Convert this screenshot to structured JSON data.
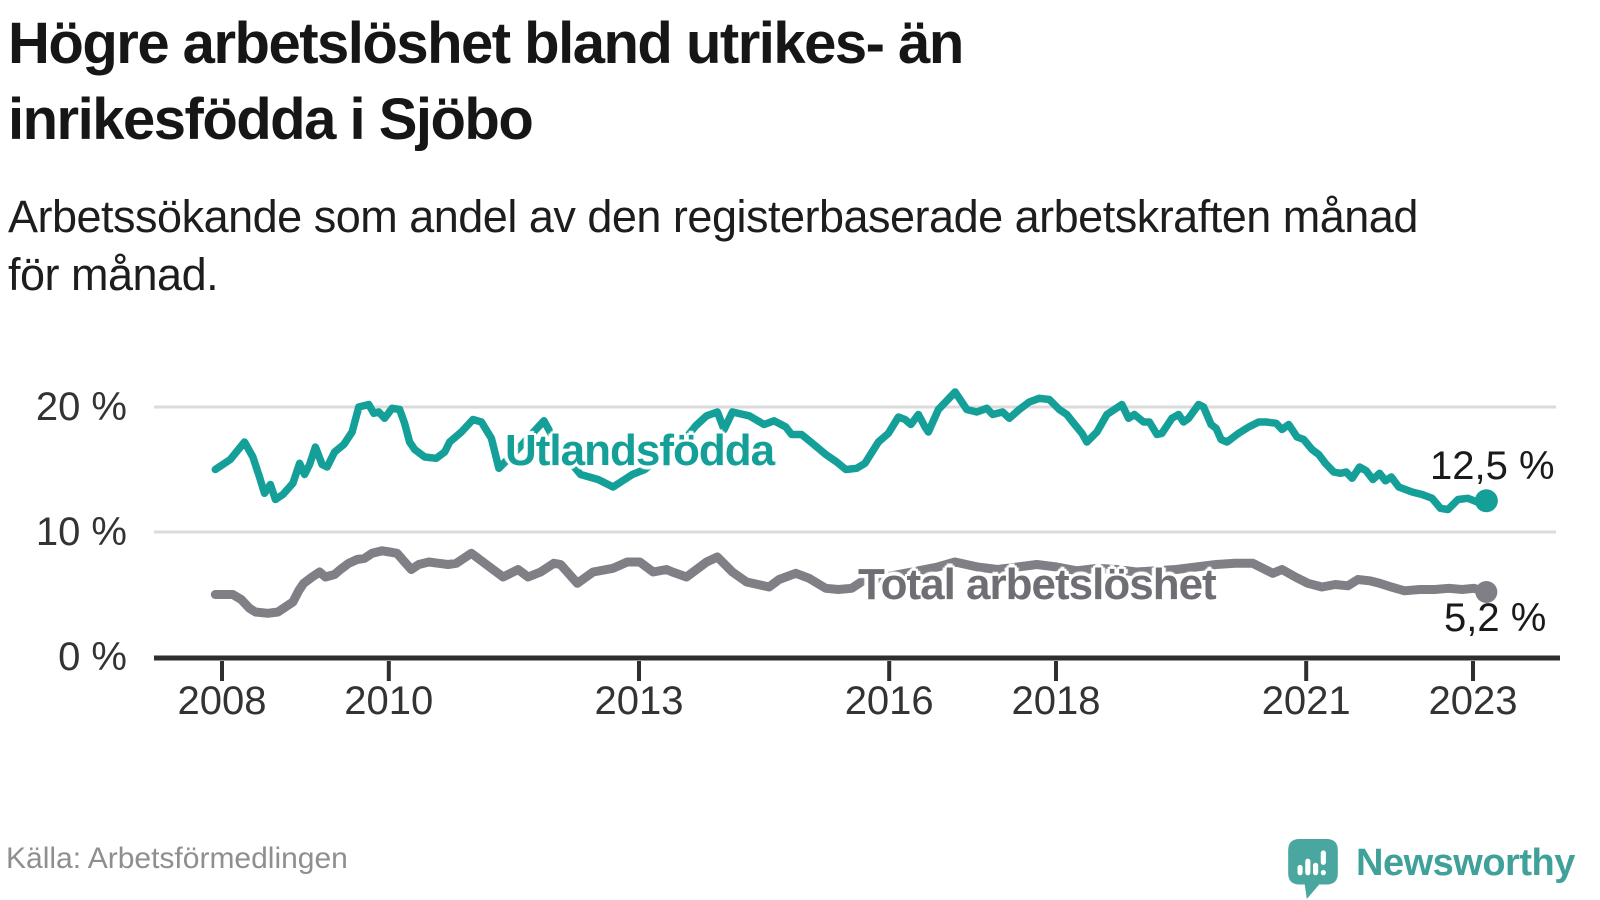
{
  "header": {
    "title": "Högre arbetslöshet bland utrikes- än inrikesfödda i Sjöbo",
    "title_lines": [
      "Högre arbetslöshet bland utrikes- än",
      "inrikesfödda i Sjöbo"
    ],
    "subtitle": "Arbetssökande som andel av den registerbaserade arbetskraften månad för månad.",
    "subtitle_lines": [
      "Arbetssökande som andel av den registerbaserade arbetskraften månad",
      "för månad."
    ]
  },
  "footer": {
    "source": "Källa: Arbetsförmedlingen",
    "brand": "Newsworthy"
  },
  "colors": {
    "teal": "#14A098",
    "gray_line": "#807F85",
    "gray_label": "#6E6E74",
    "value_text": "#1A1A1A",
    "axis_text": "#333333",
    "axis_line": "#2E2E2E",
    "grid": "#DBDBDB",
    "source_text": "#8F8F8F",
    "logo_teal": "#49A79F",
    "wordmark_teal": "#3FA19A",
    "background": "#FFFFFF"
  },
  "chart_data": {
    "type": "line",
    "title": "Högre arbetslöshet bland utrikes- än inrikesfödda i Sjöbo",
    "subtitle": "Arbetssökande som andel av den registerbaserade arbetskraften månad för månad.",
    "source": "Källa: Arbetsförmedlingen",
    "unit": "%",
    "grid": "horizontal",
    "legend_position": "inline-labels",
    "xlim": [
      2007.9,
      2023.5
    ],
    "ylim": [
      0,
      22
    ],
    "yticks": [
      0,
      10,
      20
    ],
    "ytick_labels": [
      "0 %",
      "10 %",
      "20 %"
    ],
    "xticks": [
      2008,
      2010,
      2013,
      2016,
      2018,
      2021,
      2023
    ],
    "xtick_labels": [
      "2008",
      "2010",
      "2013",
      "2016",
      "2018",
      "2021",
      "2023"
    ],
    "series": [
      {
        "id": "utlandsfodda",
        "name": "Utlandsfödda",
        "color": "#14A098",
        "end_label": "12,5 %",
        "end_value": 12.5,
        "points": [
          [
            2007.92,
            15.0
          ],
          [
            2008.1,
            15.8
          ],
          [
            2008.27,
            17.2
          ],
          [
            2008.37,
            16.0
          ],
          [
            2008.45,
            14.4
          ],
          [
            2008.51,
            13.1
          ],
          [
            2008.58,
            13.8
          ],
          [
            2008.64,
            12.6
          ],
          [
            2008.73,
            13.0
          ],
          [
            2008.85,
            13.9
          ],
          [
            2008.93,
            15.5
          ],
          [
            2008.99,
            14.6
          ],
          [
            2009.05,
            15.4
          ],
          [
            2009.12,
            16.8
          ],
          [
            2009.2,
            15.4
          ],
          [
            2009.26,
            15.2
          ],
          [
            2009.35,
            16.4
          ],
          [
            2009.46,
            17.0
          ],
          [
            2009.56,
            18.0
          ],
          [
            2009.64,
            20.0
          ],
          [
            2009.76,
            20.2
          ],
          [
            2009.82,
            19.5
          ],
          [
            2009.88,
            19.6
          ],
          [
            2009.95,
            19.1
          ],
          [
            2010.04,
            19.9
          ],
          [
            2010.13,
            19.8
          ],
          [
            2010.19,
            18.7
          ],
          [
            2010.25,
            17.2
          ],
          [
            2010.31,
            16.6
          ],
          [
            2010.43,
            16.0
          ],
          [
            2010.57,
            15.9
          ],
          [
            2010.67,
            16.4
          ],
          [
            2010.73,
            17.2
          ],
          [
            2010.87,
            18.0
          ],
          [
            2011.01,
            19.0
          ],
          [
            2011.11,
            18.8
          ],
          [
            2011.23,
            17.5
          ],
          [
            2011.32,
            15.1
          ],
          [
            2011.6,
            17.0
          ],
          [
            2011.86,
            18.9
          ],
          [
            2012.06,
            16.5
          ],
          [
            2012.3,
            14.6
          ],
          [
            2012.51,
            14.2
          ],
          [
            2012.69,
            13.6
          ],
          [
            2012.92,
            14.6
          ],
          [
            2013.07,
            15.0
          ],
          [
            2013.22,
            15.8
          ],
          [
            2013.38,
            16.3
          ],
          [
            2013.5,
            17.0
          ],
          [
            2013.68,
            18.5
          ],
          [
            2013.81,
            19.3
          ],
          [
            2013.94,
            19.6
          ],
          [
            2014.02,
            18.2
          ],
          [
            2014.12,
            19.6
          ],
          [
            2014.32,
            19.3
          ],
          [
            2014.5,
            18.6
          ],
          [
            2014.62,
            18.9
          ],
          [
            2014.76,
            18.4
          ],
          [
            2014.83,
            17.8
          ],
          [
            2014.95,
            17.8
          ],
          [
            2015.06,
            17.2
          ],
          [
            2015.24,
            16.2
          ],
          [
            2015.37,
            15.6
          ],
          [
            2015.48,
            15.0
          ],
          [
            2015.61,
            15.1
          ],
          [
            2015.71,
            15.5
          ],
          [
            2015.87,
            17.2
          ],
          [
            2015.99,
            17.9
          ],
          [
            2016.11,
            19.2
          ],
          [
            2016.19,
            19.0
          ],
          [
            2016.26,
            18.6
          ],
          [
            2016.35,
            19.4
          ],
          [
            2016.43,
            18.4
          ],
          [
            2016.47,
            18.0
          ],
          [
            2016.59,
            19.8
          ],
          [
            2016.79,
            21.2
          ],
          [
            2016.93,
            19.8
          ],
          [
            2017.05,
            19.6
          ],
          [
            2017.17,
            19.9
          ],
          [
            2017.24,
            19.4
          ],
          [
            2017.36,
            19.6
          ],
          [
            2017.44,
            19.1
          ],
          [
            2017.56,
            19.8
          ],
          [
            2017.68,
            20.4
          ],
          [
            2017.8,
            20.7
          ],
          [
            2017.92,
            20.6
          ],
          [
            2018.04,
            19.8
          ],
          [
            2018.13,
            19.4
          ],
          [
            2018.2,
            18.8
          ],
          [
            2018.31,
            17.9
          ],
          [
            2018.37,
            17.2
          ],
          [
            2018.49,
            18.0
          ],
          [
            2018.61,
            19.4
          ],
          [
            2018.79,
            20.2
          ],
          [
            2018.87,
            19.1
          ],
          [
            2018.94,
            19.4
          ],
          [
            2019.05,
            18.8
          ],
          [
            2019.12,
            18.8
          ],
          [
            2019.21,
            17.8
          ],
          [
            2019.27,
            17.9
          ],
          [
            2019.39,
            19.1
          ],
          [
            2019.47,
            19.4
          ],
          [
            2019.53,
            18.8
          ],
          [
            2019.59,
            19.1
          ],
          [
            2019.71,
            20.2
          ],
          [
            2019.77,
            20.0
          ],
          [
            2019.86,
            18.6
          ],
          [
            2019.92,
            18.3
          ],
          [
            2019.98,
            17.4
          ],
          [
            2020.05,
            17.2
          ],
          [
            2020.19,
            17.9
          ],
          [
            2020.31,
            18.4
          ],
          [
            2020.43,
            18.8
          ],
          [
            2020.52,
            18.8
          ],
          [
            2020.64,
            18.7
          ],
          [
            2020.71,
            18.2
          ],
          [
            2020.79,
            18.6
          ],
          [
            2020.89,
            17.6
          ],
          [
            2020.97,
            17.4
          ],
          [
            2021.07,
            16.6
          ],
          [
            2021.15,
            16.2
          ],
          [
            2021.23,
            15.5
          ],
          [
            2021.33,
            14.8
          ],
          [
            2021.41,
            14.7
          ],
          [
            2021.48,
            14.8
          ],
          [
            2021.55,
            14.3
          ],
          [
            2021.64,
            15.2
          ],
          [
            2021.72,
            14.9
          ],
          [
            2021.8,
            14.2
          ],
          [
            2021.88,
            14.7
          ],
          [
            2021.95,
            14.1
          ],
          [
            2022.02,
            14.4
          ],
          [
            2022.11,
            13.6
          ],
          [
            2022.27,
            13.2
          ],
          [
            2022.39,
            13.0
          ],
          [
            2022.51,
            12.7
          ],
          [
            2022.61,
            11.9
          ],
          [
            2022.7,
            11.8
          ],
          [
            2022.82,
            12.6
          ],
          [
            2022.94,
            12.7
          ],
          [
            2023.05,
            12.4
          ],
          [
            2023.16,
            12.5
          ]
        ]
      },
      {
        "id": "total",
        "name": "Total arbetslöshet",
        "color": "#807F85",
        "end_label": "5,2 %",
        "end_value": 5.2,
        "points": [
          [
            2007.92,
            5.0
          ],
          [
            2008.13,
            5.0
          ],
          [
            2008.23,
            4.6
          ],
          [
            2008.33,
            3.9
          ],
          [
            2008.4,
            3.6
          ],
          [
            2008.55,
            3.5
          ],
          [
            2008.67,
            3.6
          ],
          [
            2008.76,
            4.0
          ],
          [
            2008.85,
            4.4
          ],
          [
            2008.92,
            5.3
          ],
          [
            2008.98,
            5.9
          ],
          [
            2009.08,
            6.4
          ],
          [
            2009.17,
            6.8
          ],
          [
            2009.24,
            6.4
          ],
          [
            2009.35,
            6.6
          ],
          [
            2009.42,
            7.0
          ],
          [
            2009.52,
            7.5
          ],
          [
            2009.62,
            7.8
          ],
          [
            2009.71,
            7.9
          ],
          [
            2009.8,
            8.3
          ],
          [
            2009.92,
            8.5
          ],
          [
            2010.01,
            8.4
          ],
          [
            2010.1,
            8.3
          ],
          [
            2010.19,
            7.6
          ],
          [
            2010.27,
            7.0
          ],
          [
            2010.36,
            7.4
          ],
          [
            2010.48,
            7.6
          ],
          [
            2010.6,
            7.5
          ],
          [
            2010.71,
            7.4
          ],
          [
            2010.81,
            7.5
          ],
          [
            2010.99,
            8.3
          ],
          [
            2011.23,
            7.1
          ],
          [
            2011.37,
            6.4
          ],
          [
            2011.55,
            7.0
          ],
          [
            2011.67,
            6.4
          ],
          [
            2011.82,
            6.8
          ],
          [
            2011.98,
            7.5
          ],
          [
            2012.06,
            7.4
          ],
          [
            2012.26,
            5.9
          ],
          [
            2012.45,
            6.8
          ],
          [
            2012.69,
            7.1
          ],
          [
            2012.86,
            7.6
          ],
          [
            2013.01,
            7.6
          ],
          [
            2013.17,
            6.8
          ],
          [
            2013.33,
            7.0
          ],
          [
            2013.4,
            6.8
          ],
          [
            2013.57,
            6.4
          ],
          [
            2013.81,
            7.6
          ],
          [
            2013.94,
            8.0
          ],
          [
            2014.12,
            6.8
          ],
          [
            2014.29,
            6.0
          ],
          [
            2014.56,
            5.6
          ],
          [
            2014.68,
            6.2
          ],
          [
            2014.88,
            6.7
          ],
          [
            2015.04,
            6.3
          ],
          [
            2015.24,
            5.5
          ],
          [
            2015.39,
            5.4
          ],
          [
            2015.55,
            5.5
          ],
          [
            2015.71,
            6.2
          ],
          [
            2015.87,
            6.3
          ],
          [
            2016.11,
            6.6
          ],
          [
            2016.35,
            6.9
          ],
          [
            2016.58,
            7.2
          ],
          [
            2016.79,
            7.6
          ],
          [
            2017.06,
            7.2
          ],
          [
            2017.3,
            7.0
          ],
          [
            2017.54,
            7.2
          ],
          [
            2017.77,
            7.4
          ],
          [
            2018.01,
            7.2
          ],
          [
            2018.25,
            6.9
          ],
          [
            2018.49,
            7.1
          ],
          [
            2018.73,
            7.0
          ],
          [
            2018.96,
            6.8
          ],
          [
            2019.2,
            6.9
          ],
          [
            2019.44,
            7.0
          ],
          [
            2019.68,
            7.2
          ],
          [
            2019.92,
            7.4
          ],
          [
            2020.15,
            7.5
          ],
          [
            2020.36,
            7.5
          ],
          [
            2020.48,
            7.1
          ],
          [
            2020.6,
            6.7
          ],
          [
            2020.71,
            7.0
          ],
          [
            2020.87,
            6.4
          ],
          [
            2021.02,
            5.9
          ],
          [
            2021.19,
            5.6
          ],
          [
            2021.35,
            5.8
          ],
          [
            2021.5,
            5.7
          ],
          [
            2021.62,
            6.2
          ],
          [
            2021.76,
            6.1
          ],
          [
            2021.88,
            5.9
          ],
          [
            2022.02,
            5.6
          ],
          [
            2022.18,
            5.3
          ],
          [
            2022.36,
            5.4
          ],
          [
            2022.54,
            5.4
          ],
          [
            2022.71,
            5.5
          ],
          [
            2022.87,
            5.4
          ],
          [
            2023.01,
            5.5
          ],
          [
            2023.16,
            5.2
          ]
        ]
      }
    ]
  }
}
